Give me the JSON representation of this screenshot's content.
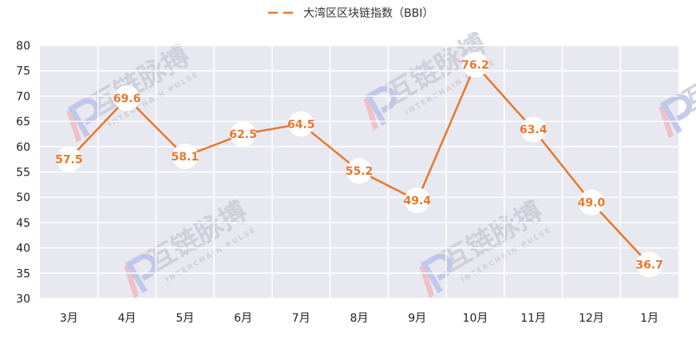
{
  "colors": {
    "plot_background": "#e8e8f0",
    "grid": "#ffffff",
    "series_line": "#e8772e",
    "data_label": "#e8772e",
    "marker_fill": "#ffffff",
    "watermark_text": "#c9c9d6",
    "watermark_logo_red": "#f0b8c0",
    "watermark_logo_blue": "#b8c0e8"
  },
  "legend": {
    "label": "大湾区区块链指数（BBI）",
    "position": "top-center"
  },
  "watermark": {
    "text": "互链脉搏",
    "subtext": "INTERCHAIN PULSE",
    "logo_icon": "ip-logo-icon"
  },
  "chart_data": {
    "type": "line",
    "categories": [
      "3月",
      "4月",
      "5月",
      "6月",
      "7月",
      "8月",
      "9月",
      "10月",
      "11月",
      "12月",
      "1月"
    ],
    "series": [
      {
        "name": "大湾区区块链指数（BBI）",
        "values": [
          57.5,
          69.6,
          58.1,
          62.5,
          64.5,
          55.2,
          49.4,
          76.2,
          63.4,
          49.0,
          36.7
        ],
        "labels": [
          "57.5",
          "69.6",
          "58.1",
          "62.5",
          "64.5",
          "55.2",
          "49.4",
          "76.2",
          "63.4",
          "49.0",
          "36.7"
        ]
      }
    ],
    "ylim": [
      30,
      80
    ],
    "yticks": [
      "30",
      "35",
      "40",
      "45",
      "50",
      "55",
      "60",
      "65",
      "70",
      "75",
      "80"
    ],
    "grid": true,
    "legend": "top-center"
  }
}
